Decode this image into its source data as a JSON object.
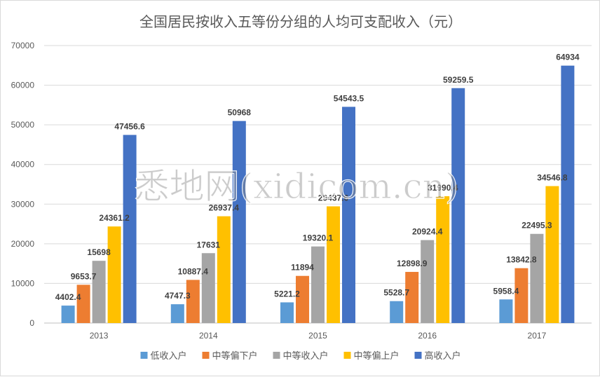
{
  "chart_data": {
    "type": "bar",
    "title": "全国居民按收入五等份分组的人均可支配收入（元）",
    "categories": [
      "2013",
      "2014",
      "2015",
      "2016",
      "2017"
    ],
    "series": [
      {
        "name": "低收入户",
        "color": "#5B9BD5",
        "values": [
          4402.4,
          4747.3,
          5221.2,
          5528.7,
          5958.4
        ],
        "labels": [
          "4402.4",
          "4747.3",
          "5221.2",
          "5528.7",
          "5958.4"
        ]
      },
      {
        "name": "中等偏下户",
        "color": "#ED7D31",
        "values": [
          9653.7,
          10887.4,
          11894,
          12898.9,
          13842.8
        ],
        "labels": [
          "9653.7",
          "10887.4",
          "11894",
          "12898.9",
          "13842.8"
        ]
      },
      {
        "name": "中等收入户",
        "color": "#A5A5A5",
        "values": [
          15698,
          17631,
          19320.1,
          20924.4,
          22495.3
        ],
        "labels": [
          "15698",
          "17631",
          "19320.1",
          "20924.4",
          "22495.3"
        ]
      },
      {
        "name": "中等偏上户",
        "color": "#FFC000",
        "values": [
          24361.2,
          26937.4,
          29437.6,
          31990.4,
          34546.8
        ],
        "labels": [
          "24361.2",
          "26937.4",
          "29437.6",
          "31990.4",
          "34546.8"
        ]
      },
      {
        "name": "高收入户",
        "color": "#4472C4",
        "values": [
          47456.6,
          50968,
          54543.5,
          59259.5,
          64934
        ],
        "labels": [
          "47456.6",
          "50968",
          "54543.5",
          "59259.5",
          "64934"
        ]
      }
    ],
    "ylim": [
      0,
      70000
    ],
    "yticks": [
      "0",
      "10000",
      "20000",
      "30000",
      "40000",
      "50000",
      "60000",
      "70000"
    ],
    "grid": true,
    "legend": "bottom",
    "xlabel": "",
    "ylabel": ""
  },
  "watermark": "悉地网(xidicom.cn)"
}
